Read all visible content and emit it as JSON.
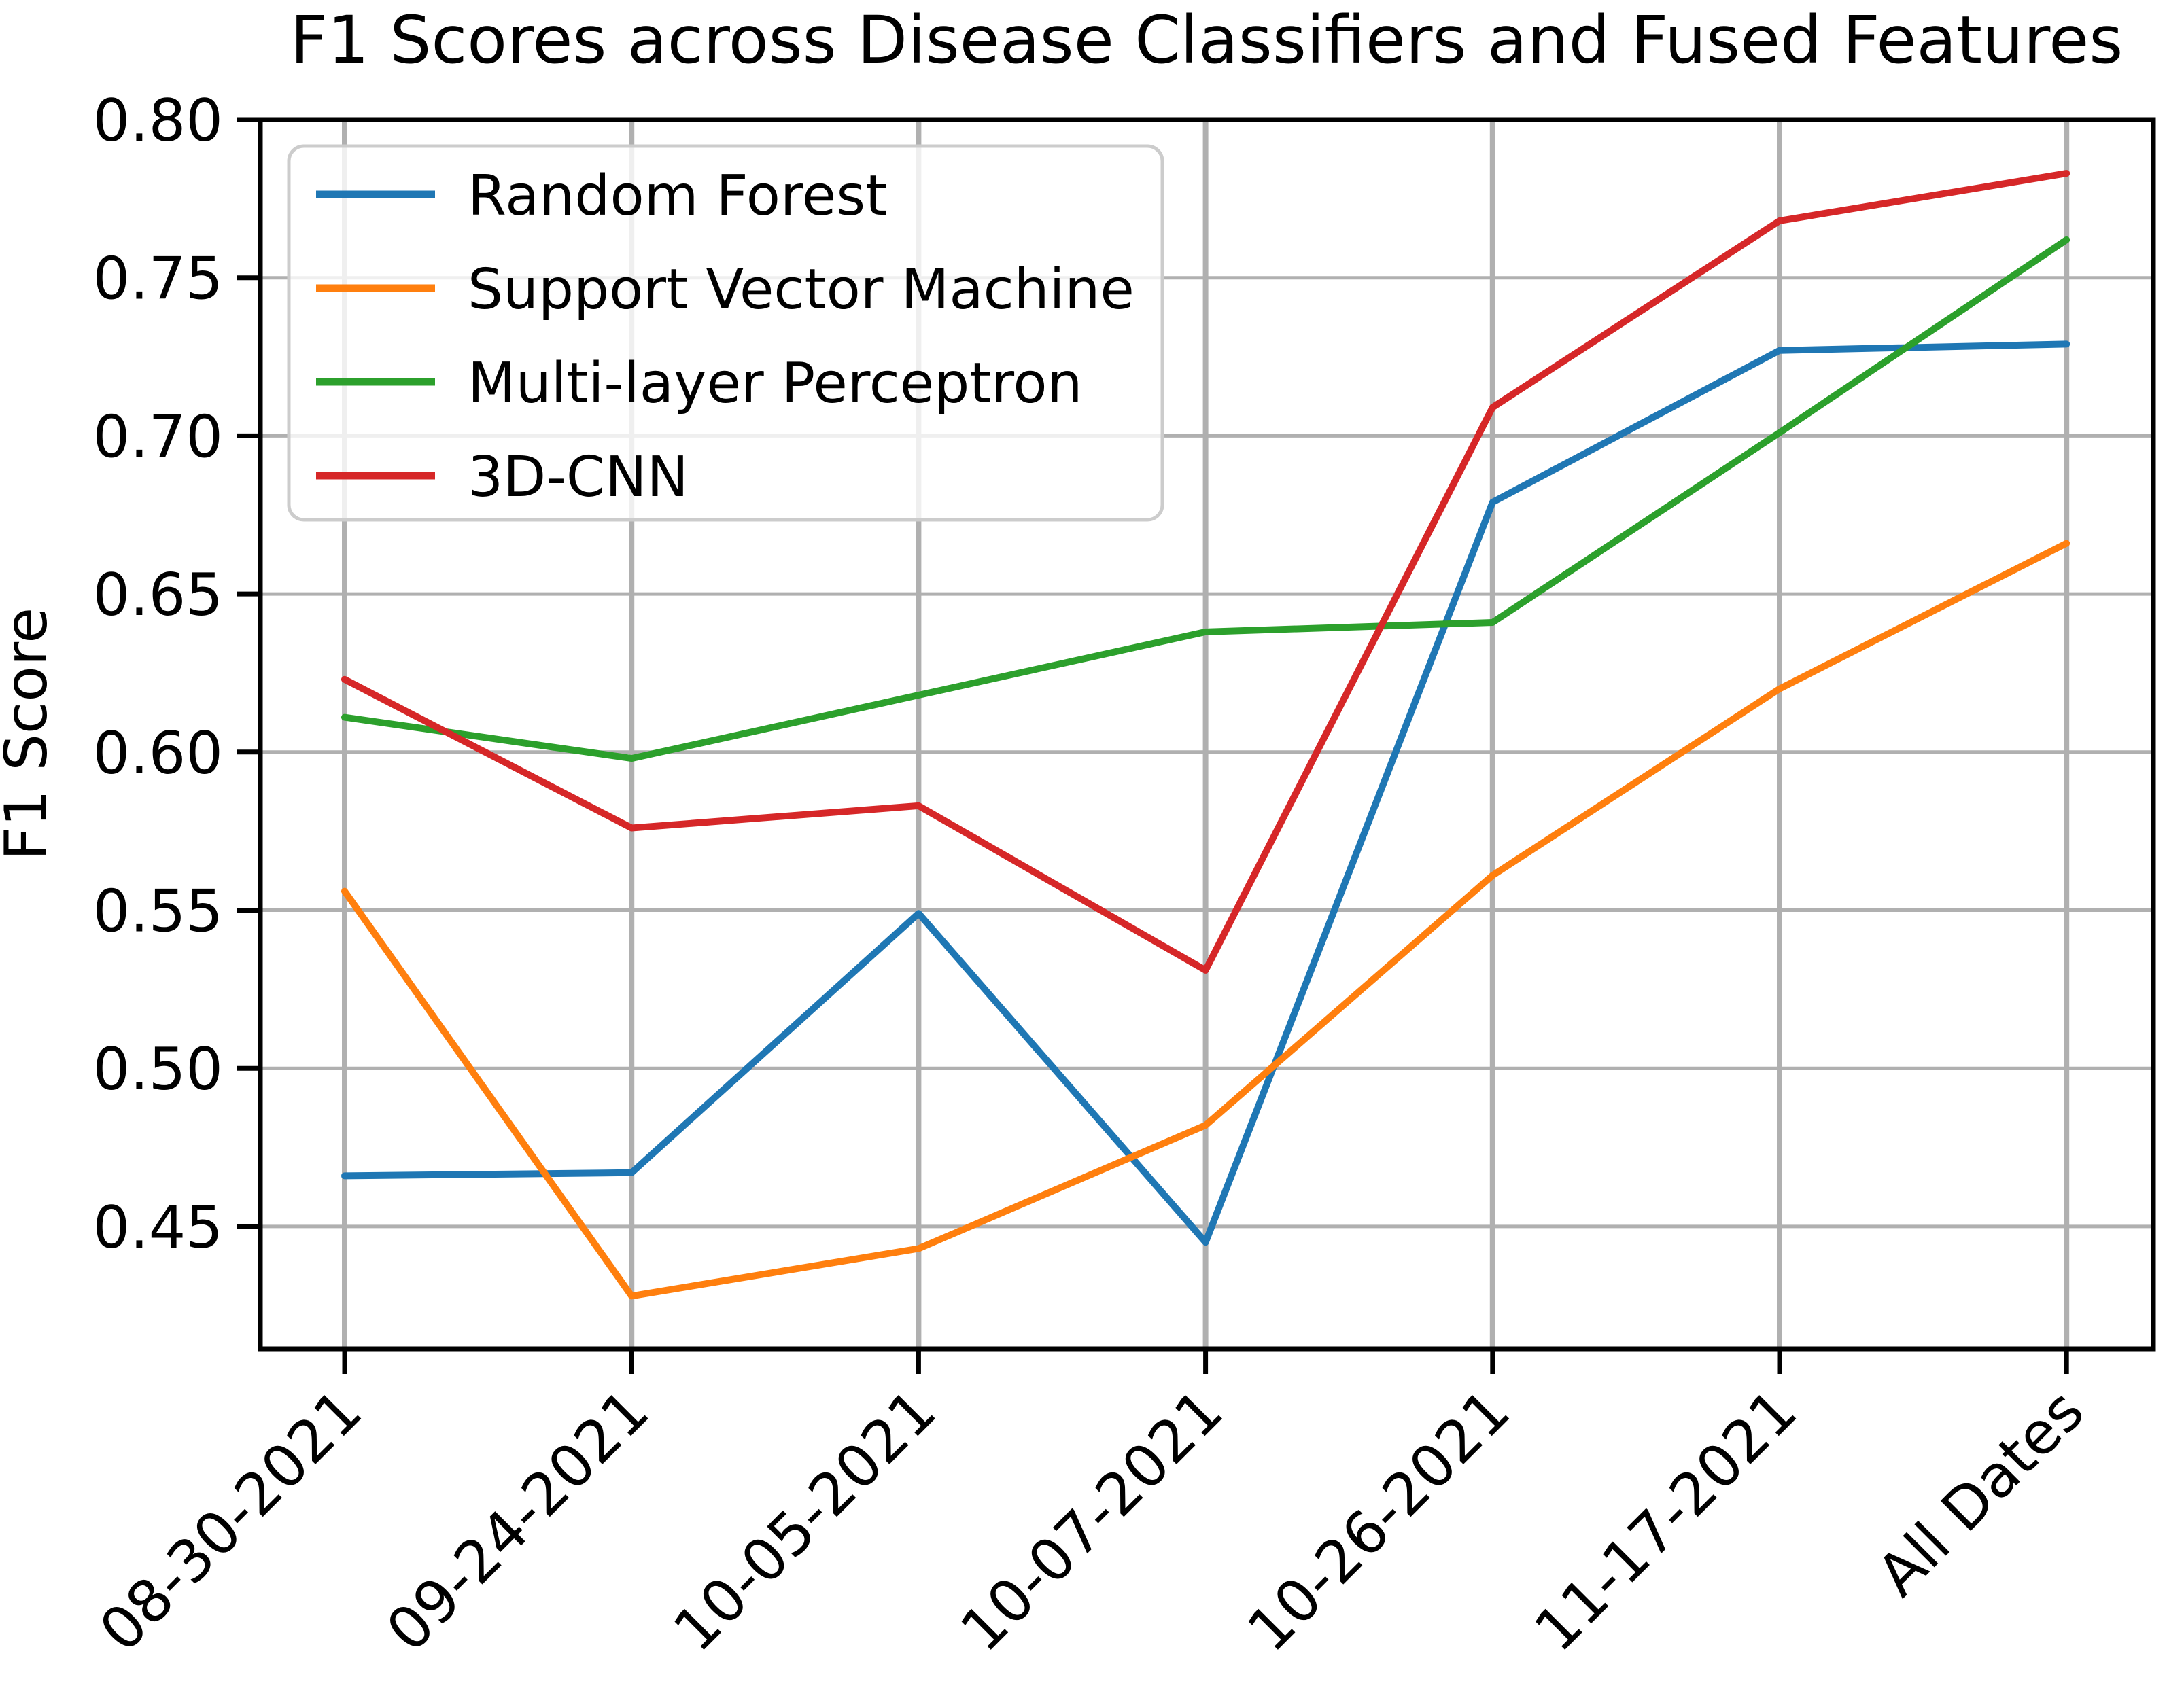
{
  "chart_data": {
    "type": "line",
    "title": "F1 Scores across Disease Classifiers and Fused Features",
    "xlabel": "",
    "ylabel": "F1 Score",
    "categories": [
      "08-30-2021",
      "09-24-2021",
      "10-05-2021",
      "10-07-2021",
      "10-26-2021",
      "11-17-2021",
      "All Dates"
    ],
    "ylim": [
      0.41,
      0.8
    ],
    "yticks": [
      0.45,
      0.5,
      0.55,
      0.6,
      0.65,
      0.7,
      0.75,
      0.8
    ],
    "grid": true,
    "legend_position": "upper left",
    "series": [
      {
        "name": "Random Forest",
        "color": "#1f77b4",
        "values": [
          0.466,
          0.467,
          0.549,
          0.445,
          0.679,
          0.727,
          0.729
        ]
      },
      {
        "name": "Support Vector Machine",
        "color": "#ff7f0e",
        "values": [
          0.556,
          0.428,
          0.443,
          0.482,
          0.561,
          0.62,
          0.666
        ]
      },
      {
        "name": "Multi-layer Perceptron",
        "color": "#2ca02c",
        "values": [
          0.611,
          0.598,
          0.618,
          0.638,
          0.641,
          0.701,
          0.762
        ]
      },
      {
        "name": "3D-CNN",
        "color": "#d62728",
        "values": [
          0.623,
          0.576,
          0.583,
          0.531,
          0.709,
          0.768,
          0.783
        ]
      }
    ],
    "styling": {
      "grid_color": "#b0b0b0",
      "spine_color": "#000000",
      "legend_edge_color": "#cccccc",
      "background": "#ffffff"
    }
  }
}
